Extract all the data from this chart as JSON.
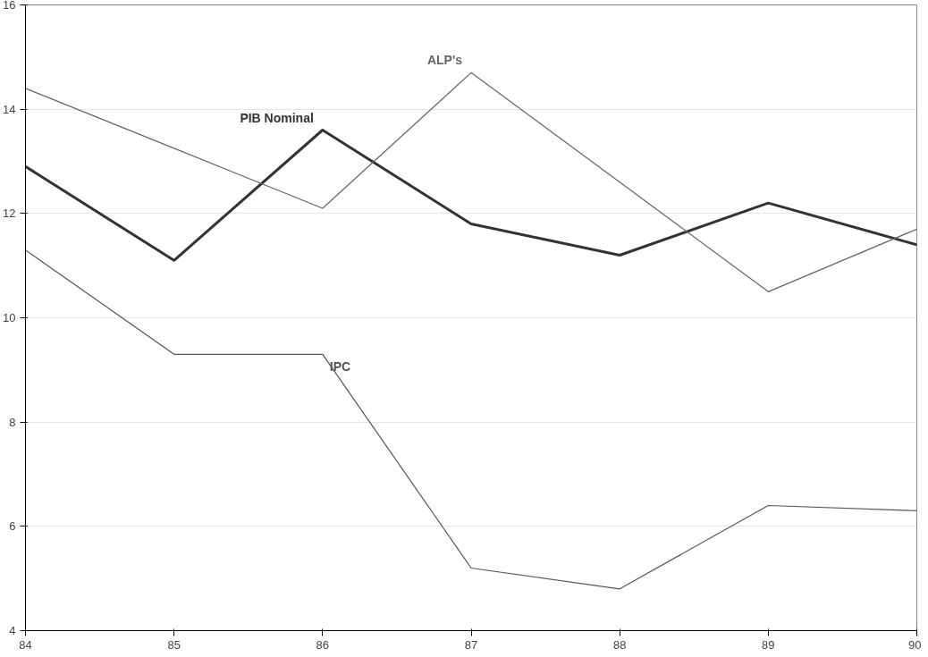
{
  "chart_data": {
    "type": "line",
    "x": [
      84,
      85,
      86,
      87,
      88,
      89,
      90
    ],
    "series": [
      {
        "name": "PIB Nominal",
        "color": "#333333",
        "values": [
          12.9,
          11.1,
          13.6,
          11.8,
          11.2,
          12.2,
          11.4
        ]
      },
      {
        "name": "ALP's",
        "color": "#666666",
        "values": [
          14.4,
          13.25,
          12.1,
          14.7,
          12.6,
          10.5,
          11.7
        ]
      },
      {
        "name": "IPC",
        "color": "#555555",
        "values": [
          11.3,
          9.3,
          9.3,
          5.2,
          4.8,
          6.4,
          6.3
        ]
      }
    ],
    "xlim": [
      84,
      90
    ],
    "xticks": [
      84,
      85,
      86,
      87,
      88,
      89,
      90
    ],
    "ylim": [
      4,
      16
    ],
    "yticks": [
      4,
      6,
      8,
      10,
      12,
      14,
      16
    ],
    "grid": "y",
    "legend": false,
    "marker": "none",
    "line_style": "solid"
  }
}
